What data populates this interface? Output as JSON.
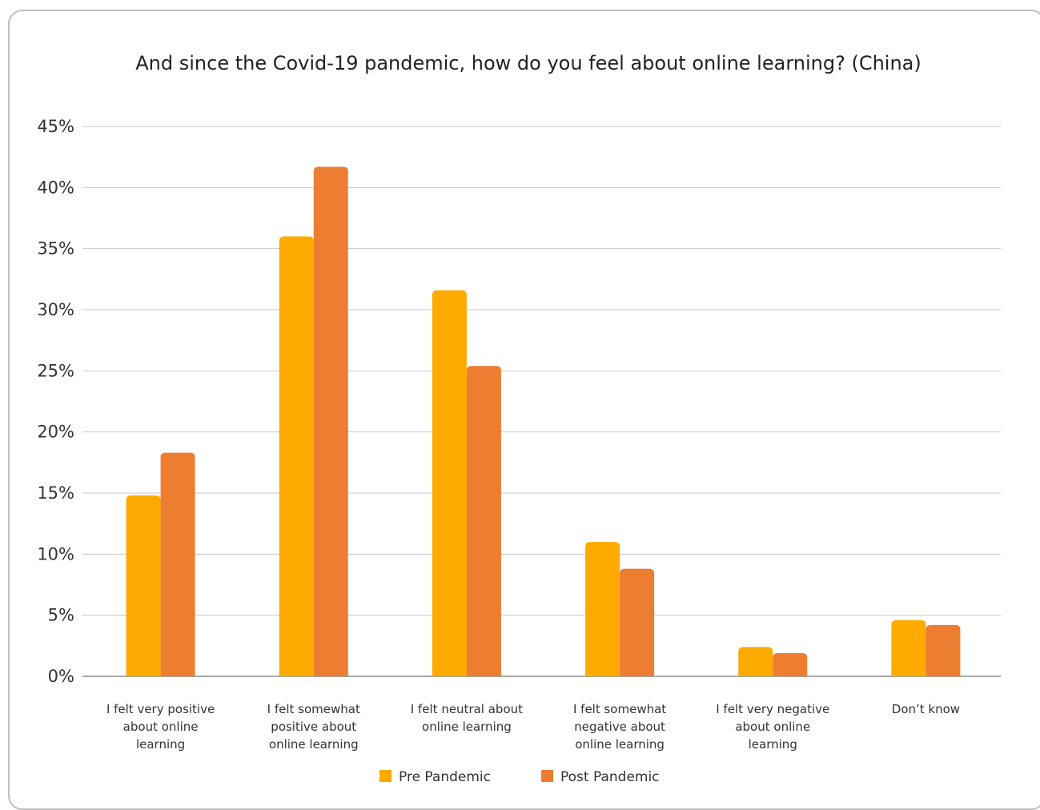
{
  "chart_data": {
    "type": "bar",
    "title": "And since the Covid-19 pandemic, how do you feel about online learning? (China)",
    "categories": [
      "I felt very positive about online learning",
      "I felt somewhat positive about online learning",
      "I felt neutral about online learning",
      "I felt somewhat negative about online learning",
      "I felt very negative about online learning",
      "Don’t know"
    ],
    "category_lines": [
      [
        "I felt very positive",
        "about online",
        "learning"
      ],
      [
        "I felt somewhat",
        "positive about",
        "online learning"
      ],
      [
        "I felt neutral about",
        "online learning"
      ],
      [
        "I felt somewhat",
        "negative about",
        "online learning"
      ],
      [
        "I felt very negative",
        "about online",
        "learning"
      ],
      [
        "Don’t know"
      ]
    ],
    "series": [
      {
        "name": "Pre Pandemic",
        "color": "#FFAA00",
        "values": [
          14.8,
          36.0,
          31.6,
          11.0,
          2.4,
          4.6
        ]
      },
      {
        "name": "Post Pandemic",
        "color": "#ED7D31",
        "values": [
          18.3,
          41.7,
          25.4,
          8.8,
          1.9,
          4.2
        ]
      }
    ],
    "ylim": [
      0,
      45
    ],
    "yticks": [
      0,
      5,
      10,
      15,
      20,
      25,
      30,
      35,
      40,
      45
    ],
    "ytick_labels": [
      "0%",
      "5%",
      "10%",
      "15%",
      "20%",
      "25%",
      "30%",
      "35%",
      "40%",
      "45%"
    ],
    "grid": true,
    "legend": "bottom-center"
  }
}
